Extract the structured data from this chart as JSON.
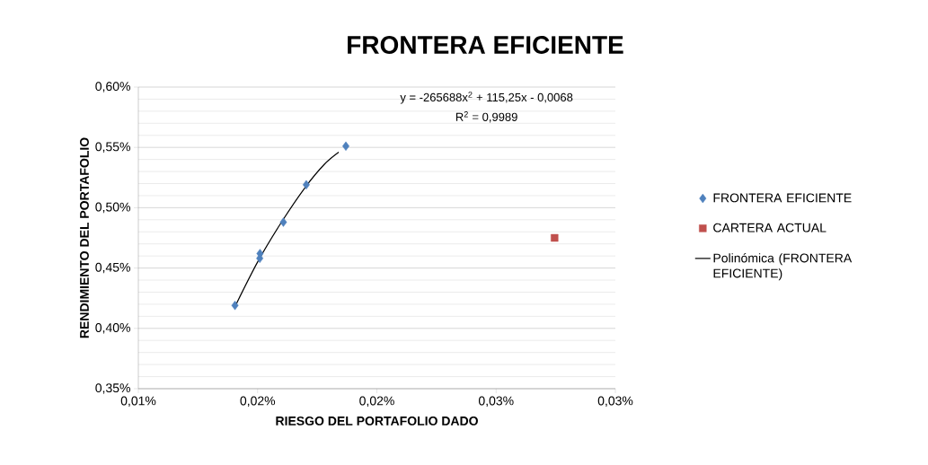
{
  "chart_data": {
    "type": "scatter",
    "title": "FRONTERA EFICIENTE",
    "xlabel": "RIESGO DEL PORTAFOLIO DADO",
    "ylabel": "RENDIMIENTO DEL PORTAFOLIO",
    "annotations": [
      "y = -265688x$^{2}$ + 115,25x - 0,0068",
      "R$^{2}$ = 0,9989"
    ],
    "series": [
      {
        "name": "FRONTERA EFICIENTE",
        "marker": "diamond",
        "color": "#4f81bd",
        "x": [
          0.01405,
          0.01509,
          0.0151,
          0.01608,
          0.01704,
          0.0187
        ],
        "values": [
          0.419,
          0.458,
          0.462,
          0.488,
          0.519,
          0.551
        ]
      },
      {
        "name": "CARTERA ACTUAL",
        "marker": "square",
        "color": "#c0504d",
        "x": [
          0.02745
        ],
        "values": [
          0.475
        ]
      },
      {
        "name": "Polinómica (FRONTERA EFICIENTE)",
        "type": "line",
        "marker": "none",
        "line_style": "solid",
        "color": "#000000",
        "x": [
          0.0141,
          0.015,
          0.016,
          0.017,
          0.0178,
          0.0184
        ],
        "values": [
          0.42,
          0.455,
          0.488,
          0.517,
          0.536,
          0.546
        ]
      }
    ],
    "xlim": [
      0.01,
      0.03
    ],
    "ylim": [
      0.35,
      0.6
    ],
    "xticks": [
      {
        "value": 0.01,
        "label": "0,01%"
      },
      {
        "value": 0.015,
        "label": "0,02%"
      },
      {
        "value": 0.02,
        "label": "0,02%"
      },
      {
        "value": 0.025,
        "label": "0,03%"
      },
      {
        "value": 0.03,
        "label": "0,03%"
      }
    ],
    "yticks": [
      {
        "value": 0.35,
        "label": "0,35%"
      },
      {
        "value": 0.4,
        "label": "0,40%"
      },
      {
        "value": 0.45,
        "label": "0,45%"
      },
      {
        "value": 0.5,
        "label": "0,50%"
      },
      {
        "value": 0.55,
        "label": "0,55%"
      },
      {
        "value": 0.6,
        "label": "0,60%"
      }
    ],
    "grid": "y",
    "legend": "right"
  }
}
